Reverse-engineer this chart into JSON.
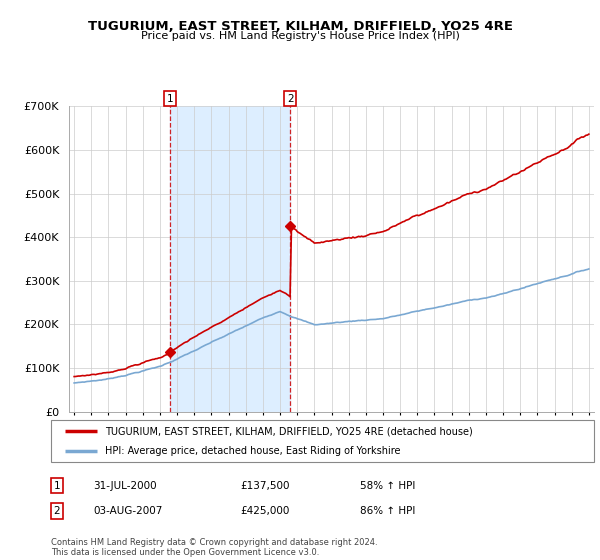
{
  "title": "TUGURIUM, EAST STREET, KILHAM, DRIFFIELD, YO25 4RE",
  "subtitle": "Price paid vs. HM Land Registry's House Price Index (HPI)",
  "legend_line1": "TUGURIUM, EAST STREET, KILHAM, DRIFFIELD, YO25 4RE (detached house)",
  "legend_line2": "HPI: Average price, detached house, East Riding of Yorkshire",
  "footnote1": "Contains HM Land Registry data © Crown copyright and database right 2024.",
  "footnote2": "This data is licensed under the Open Government Licence v3.0.",
  "marker1_label": "1",
  "marker1_date": "31-JUL-2000",
  "marker1_price": "£137,500",
  "marker1_hpi": "58% ↑ HPI",
  "marker2_label": "2",
  "marker2_date": "03-AUG-2007",
  "marker2_price": "£425,000",
  "marker2_hpi": "86% ↑ HPI",
  "property_color": "#cc0000",
  "hpi_color": "#7aa8d2",
  "shade_color": "#ddeeff",
  "ylim": [
    0,
    700000
  ],
  "yticks": [
    0,
    100000,
    200000,
    300000,
    400000,
    500000,
    600000,
    700000
  ],
  "x_start_year": 1995,
  "x_end_year": 2025,
  "marker1_x": 2000.58,
  "marker2_x": 2007.59
}
